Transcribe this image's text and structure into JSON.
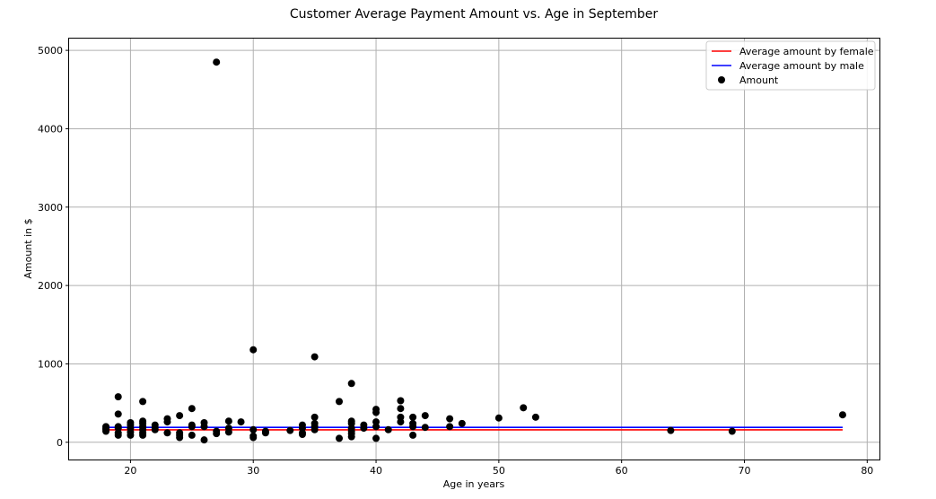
{
  "chart_data": {
    "type": "scatter",
    "title": "Customer Average Payment Amount vs. Age in September",
    "xlabel": "Age in years",
    "ylabel": "Amount in $",
    "xlim": [
      15,
      81
    ],
    "ylim": [
      -220,
      5150
    ],
    "x_ticks": [
      20,
      30,
      40,
      50,
      60,
      70,
      80
    ],
    "y_ticks": [
      0,
      1000,
      2000,
      3000,
      4000,
      5000
    ],
    "grid": true,
    "legend_position": "top-right",
    "lines": [
      {
        "name": "Average amount by female",
        "color": "#ff0000",
        "y": 158,
        "x_range": [
          18,
          78
        ]
      },
      {
        "name": "Average amount by male",
        "color": "#0000ff",
        "y": 190,
        "x_range": [
          18,
          78
        ]
      }
    ],
    "scatter": {
      "name": "Amount",
      "color": "#000000",
      "points": [
        [
          18,
          140
        ],
        [
          18,
          160
        ],
        [
          18,
          180
        ],
        [
          18,
          200
        ],
        [
          19,
          580
        ],
        [
          19,
          360
        ],
        [
          19,
          200
        ],
        [
          19,
          180
        ],
        [
          19,
          120
        ],
        [
          19,
          90
        ],
        [
          20,
          250
        ],
        [
          20,
          220
        ],
        [
          20,
          180
        ],
        [
          20,
          130
        ],
        [
          20,
          90
        ],
        [
          21,
          520
        ],
        [
          21,
          270
        ],
        [
          21,
          240
        ],
        [
          21,
          200
        ],
        [
          21,
          160
        ],
        [
          21,
          120
        ],
        [
          21,
          90
        ],
        [
          22,
          220
        ],
        [
          22,
          190
        ],
        [
          22,
          160
        ],
        [
          23,
          300
        ],
        [
          23,
          260
        ],
        [
          23,
          120
        ],
        [
          24,
          340
        ],
        [
          24,
          120
        ],
        [
          24,
          90
        ],
        [
          24,
          60
        ],
        [
          25,
          430
        ],
        [
          25,
          220
        ],
        [
          25,
          200
        ],
        [
          25,
          90
        ],
        [
          26,
          250
        ],
        [
          26,
          200
        ],
        [
          26,
          30
        ],
        [
          27,
          4850
        ],
        [
          27,
          140
        ],
        [
          27,
          110
        ],
        [
          28,
          270
        ],
        [
          28,
          180
        ],
        [
          28,
          130
        ],
        [
          29,
          260
        ],
        [
          30,
          1180
        ],
        [
          30,
          160
        ],
        [
          30,
          80
        ],
        [
          30,
          60
        ],
        [
          31,
          140
        ],
        [
          31,
          120
        ],
        [
          33,
          150
        ],
        [
          34,
          220
        ],
        [
          34,
          180
        ],
        [
          34,
          120
        ],
        [
          34,
          100
        ],
        [
          35,
          1090
        ],
        [
          35,
          320
        ],
        [
          35,
          240
        ],
        [
          35,
          200
        ],
        [
          35,
          160
        ],
        [
          37,
          520
        ],
        [
          37,
          50
        ],
        [
          38,
          750
        ],
        [
          38,
          270
        ],
        [
          38,
          240
        ],
        [
          38,
          180
        ],
        [
          38,
          140
        ],
        [
          38,
          110
        ],
        [
          38,
          70
        ],
        [
          39,
          220
        ],
        [
          39,
          180
        ],
        [
          40,
          420
        ],
        [
          40,
          380
        ],
        [
          40,
          260
        ],
        [
          40,
          200
        ],
        [
          40,
          50
        ],
        [
          41,
          160
        ],
        [
          42,
          530
        ],
        [
          42,
          430
        ],
        [
          42,
          320
        ],
        [
          42,
          260
        ],
        [
          43,
          320
        ],
        [
          43,
          240
        ],
        [
          43,
          200
        ],
        [
          43,
          90
        ],
        [
          44,
          340
        ],
        [
          44,
          190
        ],
        [
          46,
          300
        ],
        [
          46,
          200
        ],
        [
          47,
          240
        ],
        [
          50,
          310
        ],
        [
          52,
          440
        ],
        [
          53,
          320
        ],
        [
          64,
          150
        ],
        [
          69,
          140
        ],
        [
          78,
          350
        ]
      ]
    }
  }
}
